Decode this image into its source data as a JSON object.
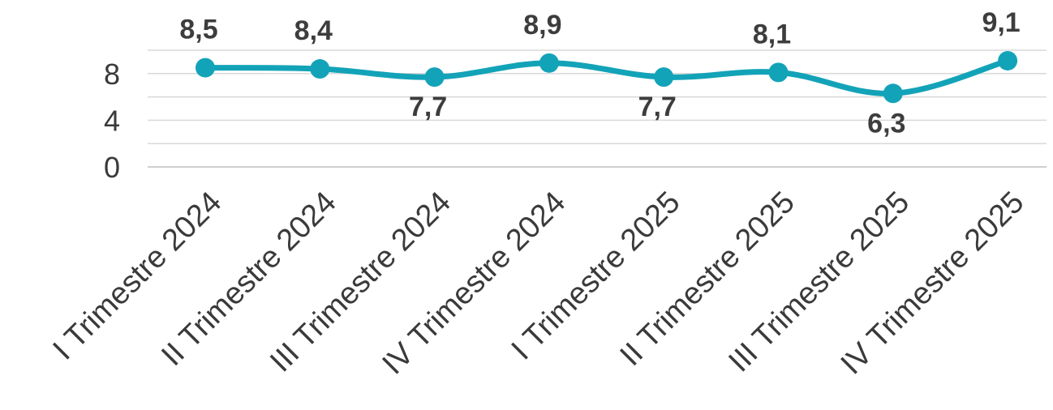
{
  "chart_data": {
    "type": "line",
    "title": "",
    "xlabel": "",
    "ylabel": "",
    "categories": [
      "I Trimestre 2024",
      "II Trimestre 2024",
      "III Trimestre 2024",
      "IV Trimestre 2024",
      "I Trimestre 2025",
      "II Trimestre 2025",
      "III Trimestre 2025",
      "IV Trimestre 2025"
    ],
    "series": [
      {
        "values": [
          8.5,
          8.4,
          7.7,
          8.9,
          7.7,
          8.1,
          6.3,
          9.1
        ],
        "labels": [
          "8,5",
          "8,4",
          "7,7",
          "8,9",
          "7,7",
          "8,1",
          "6,3",
          "9,1"
        ],
        "label_positions": [
          "above",
          "above",
          "below",
          "above",
          "below",
          "above",
          "below",
          "above"
        ],
        "color": "#13a3b8"
      }
    ],
    "ylim": [
      0,
      10
    ],
    "yticks": [
      0,
      4,
      8
    ],
    "grid": true,
    "minor_grid": true,
    "legend": "none",
    "smooth": true
  }
}
